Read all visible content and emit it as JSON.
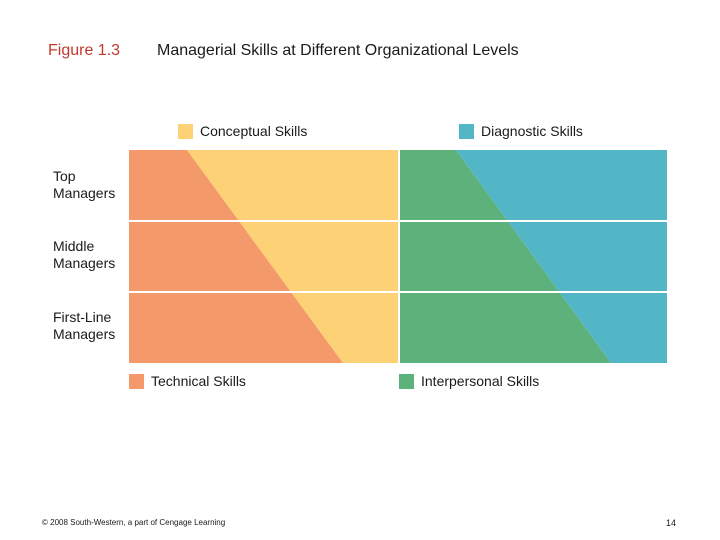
{
  "figure": {
    "label": "Figure 1.3",
    "title": "Managerial Skills at Different Organizational Levels"
  },
  "legend": {
    "conceptual": "Conceptual Skills",
    "diagnostic": "Diagnostic Skills",
    "technical": "Technical Skills",
    "interpersonal": "Interpersonal Skills"
  },
  "rows": {
    "top": [
      "Top",
      "Managers"
    ],
    "middle": [
      "Middle",
      "Managers"
    ],
    "first": [
      "First-Line",
      "Managers"
    ]
  },
  "colors": {
    "technical": "#f4996a",
    "conceptual": "#fdd175",
    "interpersonal": "#5cb27a",
    "diagnostic": "#52b6c6",
    "accent": "#c0392b"
  },
  "footer": {
    "copyright": "© 2008 South-Western, a part of Cengage Learning",
    "page": "14"
  }
}
